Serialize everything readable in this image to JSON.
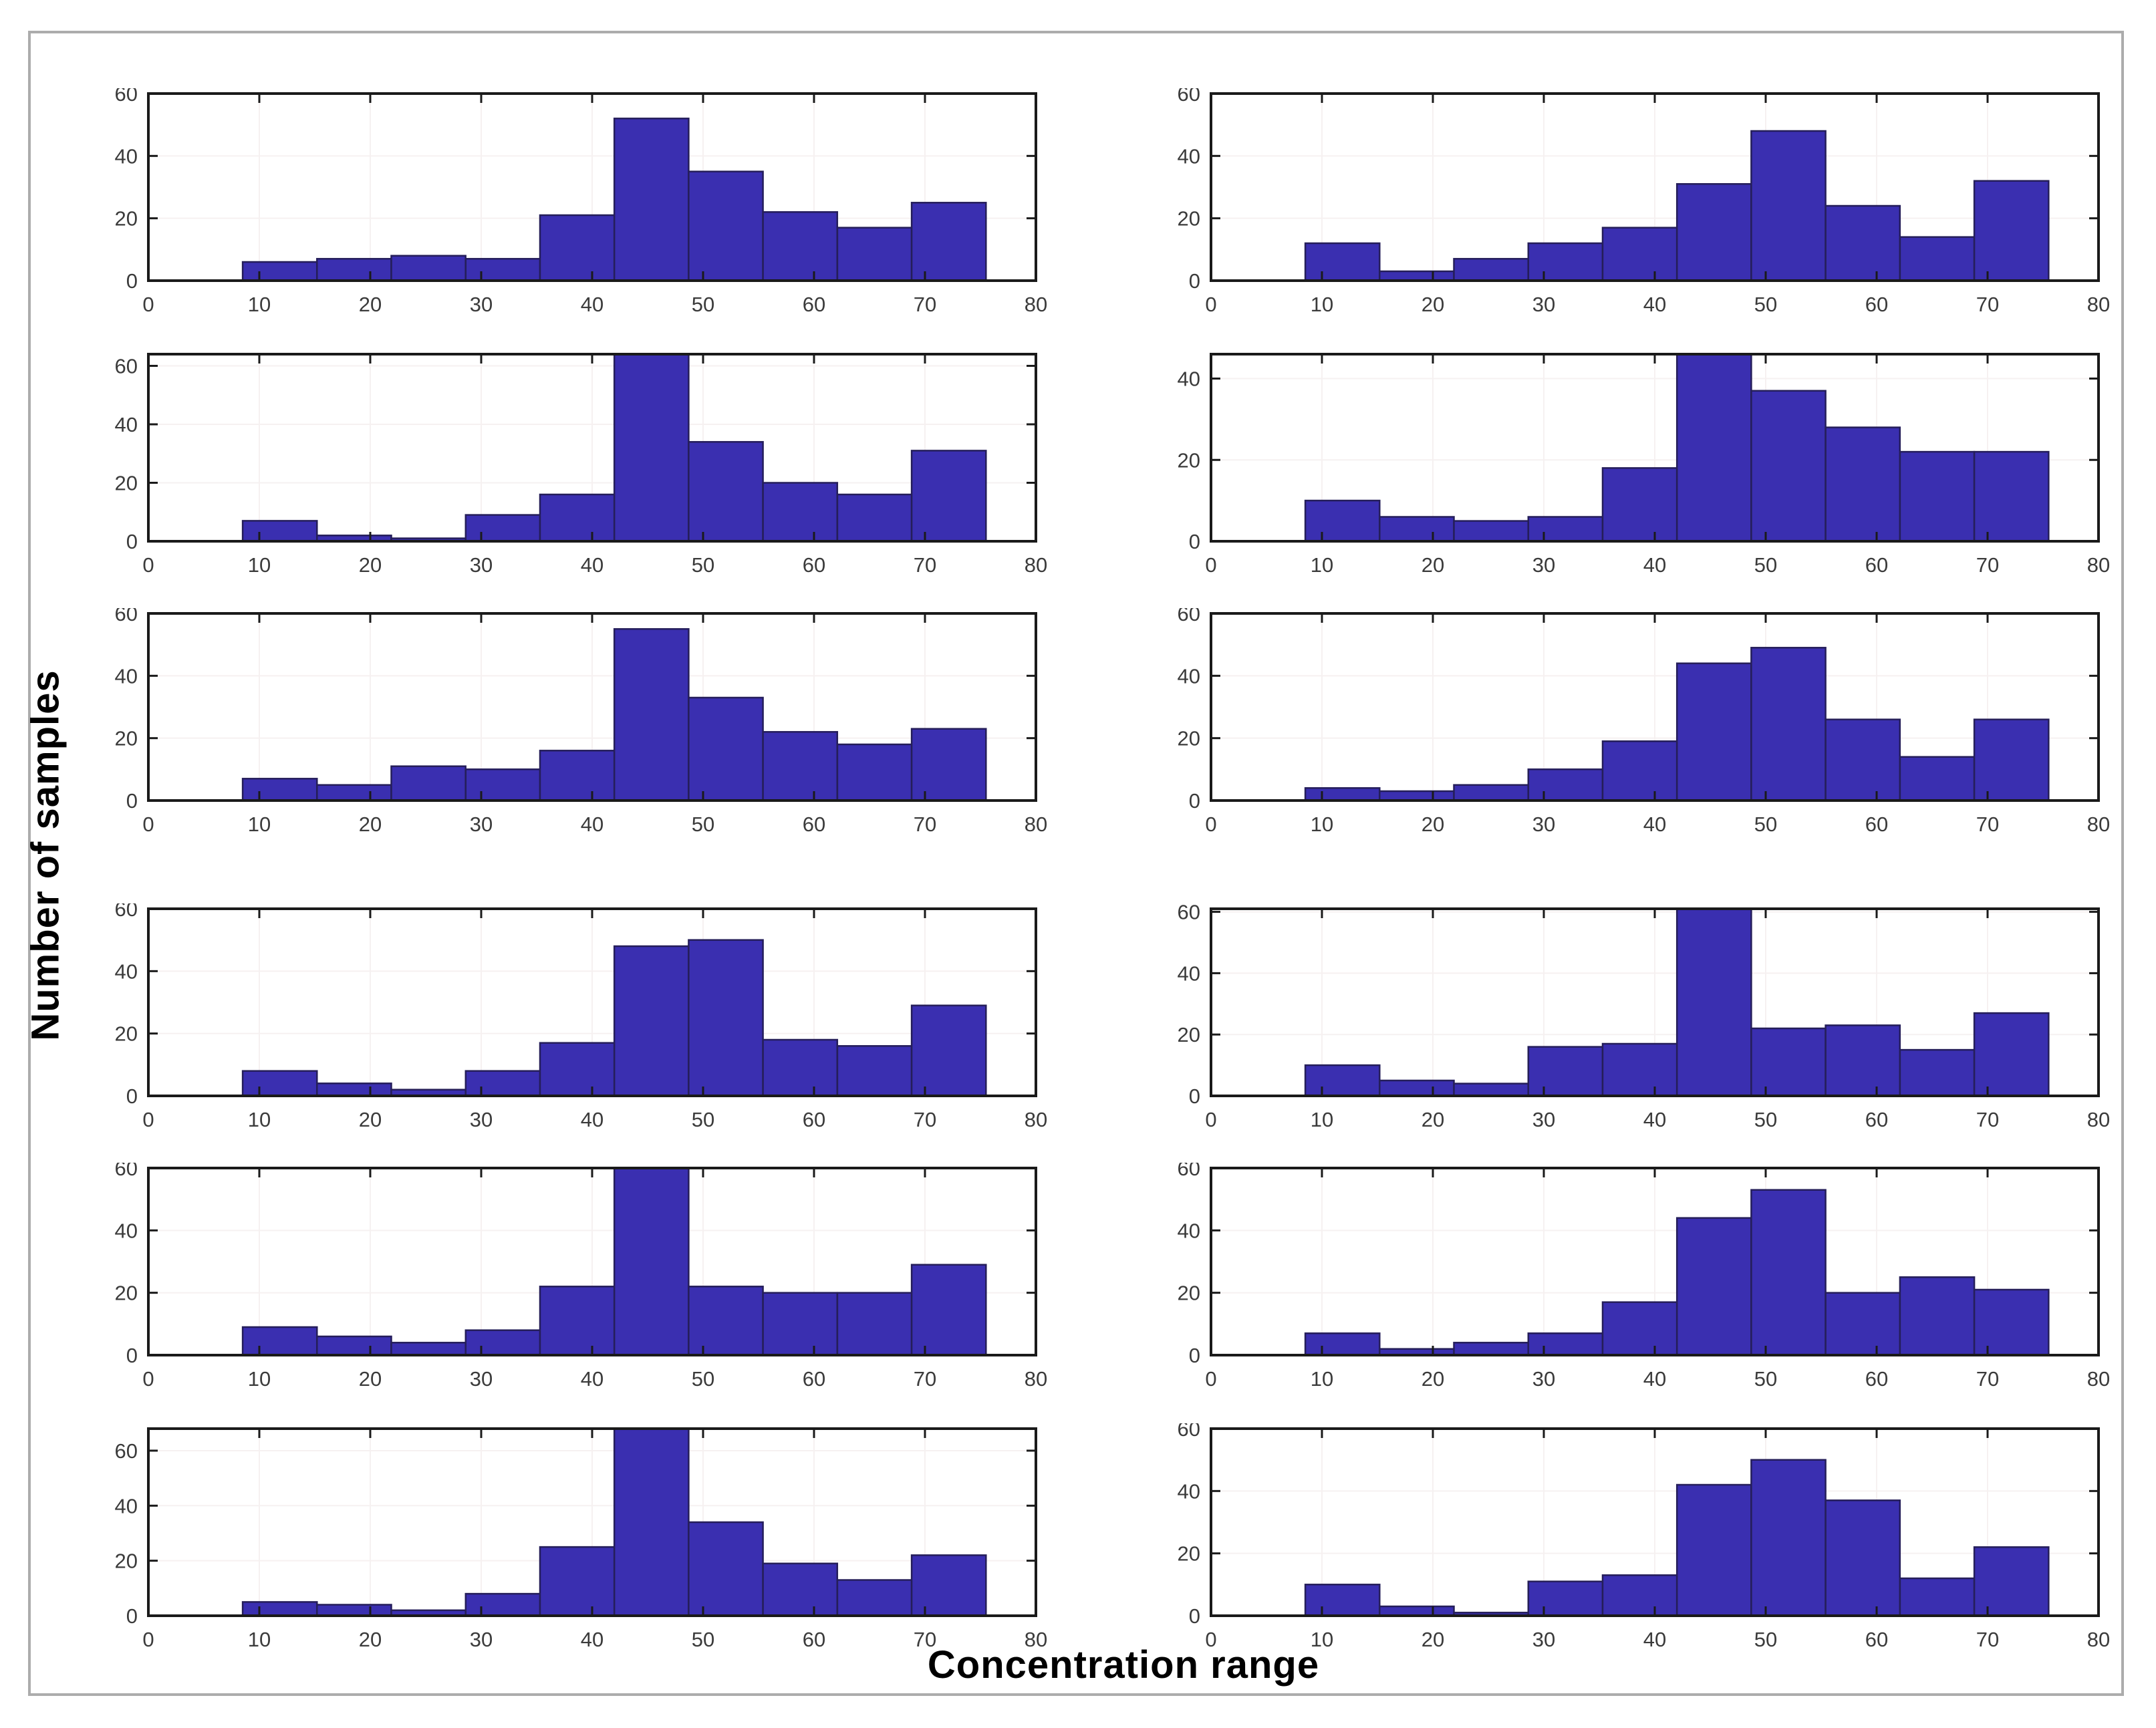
{
  "figure": {
    "background_color": "#ffffff",
    "outer_border_color": "#acacac"
  },
  "chart_data": {
    "type": "bar",
    "layout": "6 rows x 2 columns grid of histograms",
    "title": "",
    "xlabel": "Concentration range",
    "ylabel": "Number of samples",
    "xlim": [
      0,
      80
    ],
    "xticks": [
      0,
      10,
      20,
      30,
      40,
      50,
      60,
      70,
      80
    ],
    "bin_start": 8.5,
    "bin_width": 6.7,
    "n_bins": 10,
    "grid": "faint",
    "bar_fill": "#3a2fb0",
    "bar_edge": "#251e5a",
    "frame_color": "#1a1a1a",
    "tick_label_color": "#3b3b3b",
    "grid_color": "#f6f1f1",
    "subplots": [
      {
        "position": "row1-left",
        "values": [
          6,
          7,
          8,
          7,
          21,
          52,
          35,
          22,
          17,
          25
        ],
        "ylim": [
          0,
          60
        ],
        "yticks": [
          0,
          20,
          40,
          60
        ]
      },
      {
        "position": "row1-right",
        "values": [
          12,
          3,
          7,
          12,
          17,
          31,
          48,
          24,
          14,
          32
        ],
        "ylim": [
          0,
          60
        ],
        "yticks": [
          0,
          20,
          40,
          60
        ]
      },
      {
        "position": "row2-left",
        "values": [
          7,
          2,
          1,
          9,
          16,
          64,
          34,
          20,
          16,
          31
        ],
        "ylim": [
          0,
          64
        ],
        "yticks": [
          0,
          20,
          40,
          60
        ]
      },
      {
        "position": "row2-right",
        "values": [
          10,
          6,
          5,
          6,
          18,
          46,
          37,
          28,
          22,
          22
        ],
        "ylim": [
          0,
          46
        ],
        "yticks": [
          0,
          20,
          40
        ]
      },
      {
        "position": "row3-left",
        "values": [
          7,
          5,
          11,
          10,
          16,
          55,
          33,
          22,
          18,
          23
        ],
        "ylim": [
          0,
          60
        ],
        "yticks": [
          0,
          20,
          40,
          60
        ]
      },
      {
        "position": "row3-right",
        "values": [
          4,
          3,
          5,
          10,
          19,
          44,
          49,
          26,
          14,
          26
        ],
        "ylim": [
          0,
          60
        ],
        "yticks": [
          0,
          20,
          40,
          60
        ]
      },
      {
        "position": "row4-left",
        "values": [
          8,
          4,
          2,
          8,
          17,
          48,
          50,
          18,
          16,
          29
        ],
        "ylim": [
          0,
          60
        ],
        "yticks": [
          0,
          20,
          40,
          60
        ]
      },
      {
        "position": "row4-right",
        "values": [
          10,
          5,
          4,
          16,
          17,
          61,
          22,
          23,
          15,
          27
        ],
        "ylim": [
          0,
          61
        ],
        "yticks": [
          0,
          20,
          40,
          60
        ]
      },
      {
        "position": "row5-left",
        "values": [
          9,
          6,
          4,
          8,
          22,
          60,
          22,
          20,
          20,
          29
        ],
        "ylim": [
          0,
          60
        ],
        "yticks": [
          0,
          20,
          40,
          60
        ]
      },
      {
        "position": "row5-right",
        "values": [
          7,
          2,
          4,
          7,
          17,
          44,
          53,
          20,
          25,
          21
        ],
        "ylim": [
          0,
          60
        ],
        "yticks": [
          0,
          20,
          40,
          60
        ]
      },
      {
        "position": "row6-left",
        "values": [
          5,
          4,
          2,
          8,
          25,
          68,
          34,
          19,
          13,
          22
        ],
        "ylim": [
          0,
          68
        ],
        "yticks": [
          0,
          20,
          40,
          60
        ]
      },
      {
        "position": "row6-right",
        "values": [
          10,
          3,
          1,
          11,
          13,
          42,
          50,
          37,
          12,
          22
        ],
        "ylim": [
          0,
          60
        ],
        "yticks": [
          0,
          20,
          40,
          60
        ]
      }
    ]
  }
}
